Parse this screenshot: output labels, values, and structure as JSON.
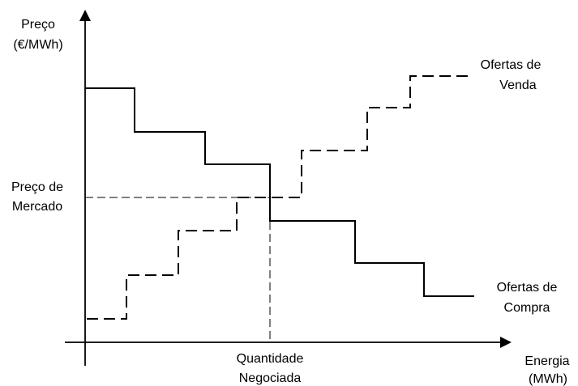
{
  "axes": {
    "y_label_line1": "Preço",
    "y_label_line2": "(€/MWh)",
    "x_label_line1": "Energia",
    "x_label_line2": "(MWh)"
  },
  "equilibrium": {
    "price_label_line1": "Preço de",
    "price_label_line2": "Mercado",
    "quantity_label_line1": "Quantidade",
    "quantity_label_line2": "Negociada"
  },
  "curves": {
    "supply_label_line1": "Ofertas de",
    "supply_label_line2": "Venda",
    "demand_label_line1": "Ofertas de",
    "demand_label_line2": "Compra"
  },
  "colors": {
    "ink": "#000000",
    "background": "#ffffff"
  }
}
